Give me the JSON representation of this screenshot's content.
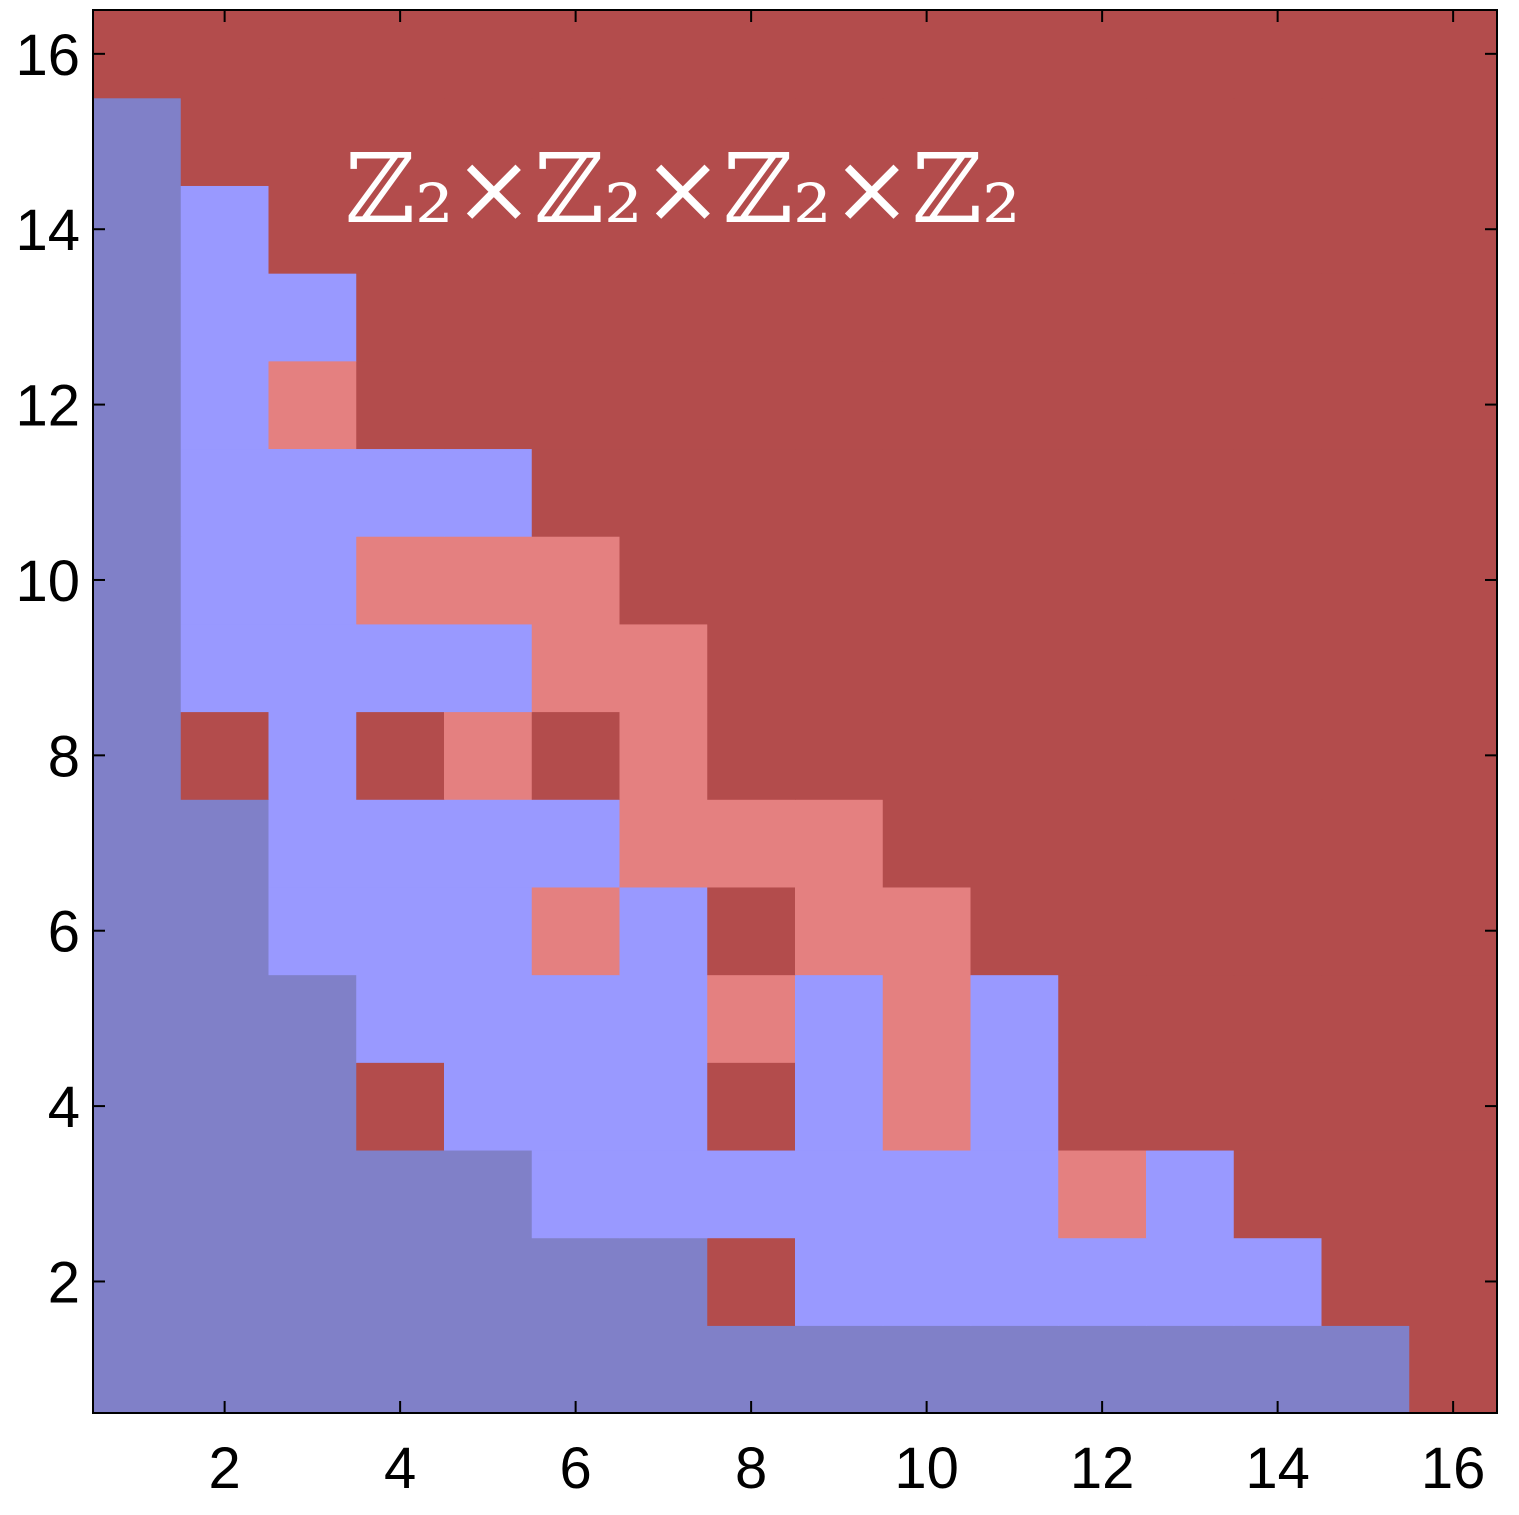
{
  "chart_data": {
    "type": "heatmap",
    "annotation": "ℤ₂×ℤ₂×ℤ₂×ℤ₂",
    "x": [
      1,
      2,
      3,
      4,
      5,
      6,
      7,
      8,
      9,
      10,
      11,
      12,
      13,
      14,
      15,
      16
    ],
    "y": [
      1,
      2,
      3,
      4,
      5,
      6,
      7,
      8,
      9,
      10,
      11,
      12,
      13,
      14,
      15,
      16
    ],
    "colors": [
      "#8080c8",
      "#9999ff",
      "#e48080",
      "#b34c4c"
    ],
    "z": [
      [
        0,
        0,
        0,
        0,
        0,
        0,
        0,
        0,
        0,
        0,
        0,
        0,
        0,
        0,
        0,
        3
      ],
      [
        0,
        0,
        0,
        0,
        0,
        0,
        0,
        3,
        1,
        1,
        1,
        1,
        1,
        1,
        3,
        3
      ],
      [
        0,
        0,
        0,
        0,
        0,
        1,
        1,
        1,
        1,
        1,
        1,
        2,
        1,
        3,
        3,
        3
      ],
      [
        0,
        0,
        0,
        3,
        1,
        1,
        1,
        3,
        1,
        2,
        1,
        3,
        3,
        3,
        3,
        3
      ],
      [
        0,
        0,
        0,
        1,
        1,
        1,
        1,
        2,
        1,
        2,
        1,
        3,
        3,
        3,
        3,
        3
      ],
      [
        0,
        0,
        1,
        1,
        1,
        2,
        1,
        3,
        2,
        2,
        3,
        3,
        3,
        3,
        3,
        3
      ],
      [
        0,
        0,
        1,
        1,
        1,
        1,
        2,
        2,
        2,
        3,
        3,
        3,
        3,
        3,
        3,
        3
      ],
      [
        0,
        3,
        1,
        3,
        2,
        3,
        2,
        3,
        3,
        3,
        3,
        3,
        3,
        3,
        3,
        3
      ],
      [
        0,
        1,
        1,
        1,
        1,
        2,
        2,
        3,
        3,
        3,
        3,
        3,
        3,
        3,
        3,
        3
      ],
      [
        0,
        1,
        1,
        2,
        2,
        2,
        3,
        3,
        3,
        3,
        3,
        3,
        3,
        3,
        3,
        3
      ],
      [
        0,
        1,
        1,
        1,
        1,
        3,
        3,
        3,
        3,
        3,
        3,
        3,
        3,
        3,
        3,
        3
      ],
      [
        0,
        1,
        2,
        3,
        3,
        3,
        3,
        3,
        3,
        3,
        3,
        3,
        3,
        3,
        3,
        3
      ],
      [
        0,
        1,
        1,
        3,
        3,
        3,
        3,
        3,
        3,
        3,
        3,
        3,
        3,
        3,
        3,
        3
      ],
      [
        0,
        1,
        3,
        3,
        3,
        3,
        3,
        3,
        3,
        3,
        3,
        3,
        3,
        3,
        3,
        3
      ],
      [
        0,
        3,
        3,
        3,
        3,
        3,
        3,
        3,
        3,
        3,
        3,
        3,
        3,
        3,
        3,
        3
      ],
      [
        3,
        3,
        3,
        3,
        3,
        3,
        3,
        3,
        3,
        3,
        3,
        3,
        3,
        3,
        3,
        3
      ]
    ],
    "xlim": [
      0.5,
      16.5
    ],
    "ylim": [
      0.5,
      16.5
    ],
    "xticks": [
      2,
      4,
      6,
      8,
      10,
      12,
      14,
      16
    ],
    "yticks": [
      2,
      4,
      6,
      8,
      10,
      12,
      14,
      16
    ]
  }
}
